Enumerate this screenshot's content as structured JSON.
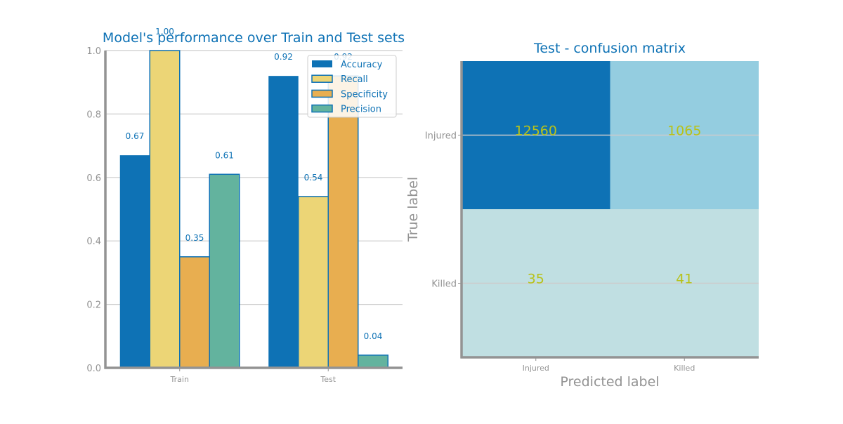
{
  "chart_data": [
    {
      "type": "bar",
      "title": "Model's performance over Train and Test sets",
      "categories": [
        "Train",
        "Test"
      ],
      "ylim": [
        0,
        1.0
      ],
      "yticks": [
        "0.0",
        "0.2",
        "0.4",
        "0.6",
        "0.8",
        "1.0"
      ],
      "grid": true,
      "legend_position": "top-right",
      "series": [
        {
          "name": "Accuracy",
          "values": [
            0.67,
            0.92
          ],
          "labels": [
            "0.67",
            "0.92"
          ],
          "color": "#0e72b5"
        },
        {
          "name": "Recall",
          "values": [
            1.0,
            0.54
          ],
          "labels": [
            "1.00",
            "0.54"
          ],
          "color": "#ecd576"
        },
        {
          "name": "Specificity",
          "values": [
            0.35,
            0.92
          ],
          "labels": [
            "0.35",
            "0.92"
          ],
          "color": "#e8ae50"
        },
        {
          "name": "Precision",
          "values": [
            0.61,
            0.04
          ],
          "labels": [
            "0.61",
            "0.04"
          ],
          "color": "#63b39e"
        }
      ]
    },
    {
      "type": "heatmap",
      "title": "Test - confusion matrix",
      "xlabel": "Predicted label",
      "ylabel": "True label",
      "x_categories": [
        "Injured",
        "Killed"
      ],
      "y_categories": [
        "Injured",
        "Killed"
      ],
      "values": [
        [
          12560,
          1065
        ],
        [
          35,
          41
        ]
      ],
      "cell_labels": [
        [
          "12560",
          "1065"
        ],
        [
          "35",
          "41"
        ]
      ]
    }
  ],
  "colors": {
    "title": "#0e72b5",
    "axis": "#939393",
    "grid": "#cccccc",
    "bar_edge": "#0e72b5",
    "bar_label": "#0e72b5",
    "cell_text": "#b8c21a",
    "heat_high": "#0e72b5",
    "heat_mid": "#94cde0",
    "heat_low": "#c0dfe2"
  }
}
